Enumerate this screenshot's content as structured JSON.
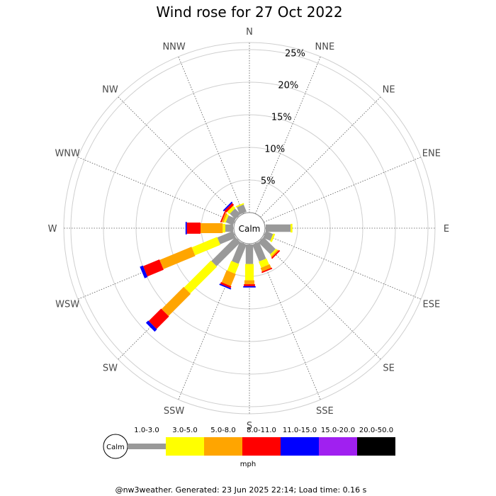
{
  "chart_data": {
    "type": "wind-rose",
    "title": "Wind rose for 27 Oct 2022",
    "calm_label": "Calm",
    "directions": [
      "N",
      "NNE",
      "NE",
      "ENE",
      "E",
      "ESE",
      "SE",
      "SSE",
      "S",
      "SSW",
      "SW",
      "WSW",
      "W",
      "WNW",
      "NW",
      "NNW"
    ],
    "radial_ticks": [
      "5%",
      "10%",
      "15%",
      "20%",
      "25%"
    ],
    "radial_values": [
      5,
      10,
      15,
      20,
      25
    ],
    "speed_bins": [
      "1.0-3.0",
      "3.0-5.0",
      "5.0-8.0",
      "8.0-11.0",
      "11.0-15.0",
      "15.0-20.0",
      "20.0-50.0"
    ],
    "bin_colors": [
      "#999999",
      "#ffff00",
      "#ffa500",
      "#ff0000",
      "#0000ff",
      "#a020f0",
      "#000000"
    ],
    "unit": "mph",
    "series": [
      {
        "direction": "N",
        "values": [
          0,
          0,
          0,
          0,
          0,
          0,
          0
        ]
      },
      {
        "direction": "NNE",
        "values": [
          0,
          0,
          0,
          0,
          0,
          0,
          0
        ]
      },
      {
        "direction": "NE",
        "values": [
          0,
          0,
          0,
          0,
          0,
          0,
          0
        ]
      },
      {
        "direction": "ENE",
        "values": [
          0,
          0,
          0,
          0,
          0,
          0,
          0
        ]
      },
      {
        "direction": "E",
        "values": [
          3.8,
          0.3,
          0,
          0,
          0,
          0,
          0
        ]
      },
      {
        "direction": "ESE",
        "values": [
          1.2,
          0.3,
          0,
          0,
          0,
          0,
          0
        ]
      },
      {
        "direction": "SE",
        "values": [
          2.6,
          0.3,
          0.2,
          0.2,
          0,
          0,
          0
        ]
      },
      {
        "direction": "SSE",
        "values": [
          2.8,
          1.0,
          0.6,
          0.2,
          0,
          0,
          0
        ]
      },
      {
        "direction": "S",
        "values": [
          3.0,
          2.5,
          0.6,
          0.3,
          0.2,
          0,
          0
        ]
      },
      {
        "direction": "SSW",
        "values": [
          3.2,
          1.6,
          2.0,
          0.3,
          0.2,
          0,
          0
        ]
      },
      {
        "direction": "SW",
        "values": [
          5.2,
          5.8,
          4.8,
          2.7,
          0.5,
          0,
          0
        ]
      },
      {
        "direction": "WSW",
        "values": [
          2.6,
          4.2,
          5.3,
          2.7,
          0.5,
          0,
          0
        ]
      },
      {
        "direction": "W",
        "values": [
          1.2,
          0.4,
          3.4,
          2.1,
          0.2,
          0,
          0
        ]
      },
      {
        "direction": "WNW",
        "values": [
          1.2,
          0.3,
          0.3,
          0.2,
          0,
          0,
          0
        ]
      },
      {
        "direction": "NW",
        "values": [
          1.2,
          0.5,
          0,
          0.4,
          0.2,
          0,
          0
        ]
      },
      {
        "direction": "NNW",
        "values": [
          1.2,
          0.2,
          0,
          0,
          0,
          0,
          0
        ]
      }
    ]
  },
  "footer": "@nw3weather. Generated: 23 Jun 2025 22:14; Load time: 0.16 s"
}
